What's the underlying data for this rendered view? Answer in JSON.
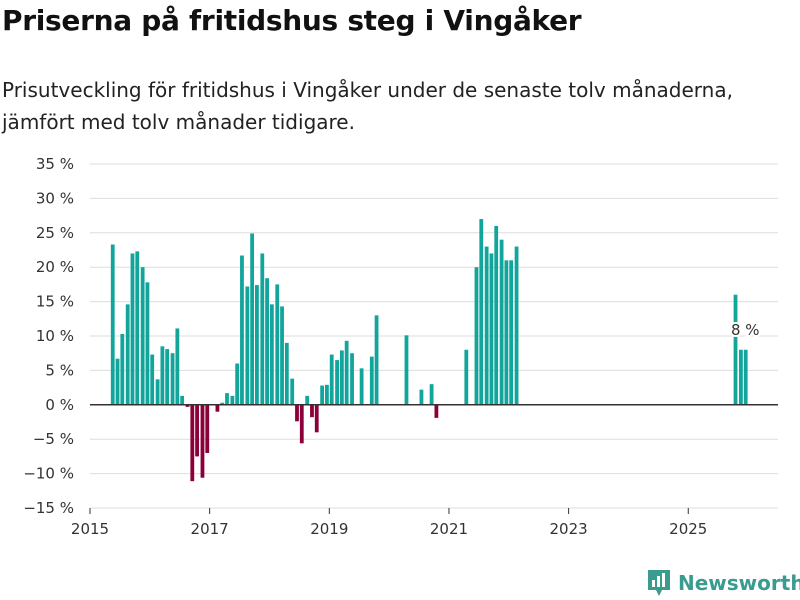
{
  "title": "Priserna på fritidshus steg i Vingåker",
  "subtitle": "Prisutveckling för fritidshus i Vingåker under de senaste tolv månaderna, jämfört med tolv månader tidigare.",
  "brand": "Newsworthy",
  "colors": {
    "positive": "#11a59b",
    "negative": "#8b0038",
    "grid": "#dddddd",
    "zero": "#333333"
  },
  "chart_data": {
    "type": "bar",
    "ylim": [
      -15,
      35
    ],
    "yticks": [
      -15,
      -10,
      -5,
      0,
      5,
      10,
      15,
      20,
      25,
      30,
      35
    ],
    "ytick_labels": [
      "−15 %",
      "−10 %",
      "−5 %",
      "0 %",
      "5 %",
      "10 %",
      "15 %",
      "20 %",
      "25 %",
      "30 %",
      "35 %"
    ],
    "xlim": [
      2015.0,
      2026.5
    ],
    "xticks": [
      2015,
      2017,
      2019,
      2021,
      2023,
      2025
    ],
    "xtick_labels": [
      "2015",
      "2017",
      "2019",
      "2021",
      "2023",
      "2025"
    ],
    "annotation": {
      "text": "8 %",
      "x": 2025.92,
      "value": 8
    },
    "points": [
      {
        "x": 2015.38,
        "y": 23.3
      },
      {
        "x": 2015.46,
        "y": 6.7
      },
      {
        "x": 2015.54,
        "y": 10.3
      },
      {
        "x": 2015.63,
        "y": 14.6
      },
      {
        "x": 2015.71,
        "y": 22.0
      },
      {
        "x": 2015.79,
        "y": 22.3
      },
      {
        "x": 2015.88,
        "y": 20.0
      },
      {
        "x": 2015.96,
        "y": 17.8
      },
      {
        "x": 2016.04,
        "y": 7.3
      },
      {
        "x": 2016.13,
        "y": 3.7
      },
      {
        "x": 2016.21,
        "y": 8.5
      },
      {
        "x": 2016.29,
        "y": 8.1
      },
      {
        "x": 2016.38,
        "y": 7.5
      },
      {
        "x": 2016.46,
        "y": 11.1
      },
      {
        "x": 2016.54,
        "y": 1.3
      },
      {
        "x": 2016.63,
        "y": -0.3
      },
      {
        "x": 2016.71,
        "y": -11.1
      },
      {
        "x": 2016.79,
        "y": -7.5
      },
      {
        "x": 2016.88,
        "y": -10.6
      },
      {
        "x": 2016.96,
        "y": -7.0
      },
      {
        "x": 2017.13,
        "y": -1.0
      },
      {
        "x": 2017.21,
        "y": 0.3
      },
      {
        "x": 2017.29,
        "y": 1.7
      },
      {
        "x": 2017.38,
        "y": 1.3
      },
      {
        "x": 2017.46,
        "y": 6.0
      },
      {
        "x": 2017.54,
        "y": 21.7
      },
      {
        "x": 2017.63,
        "y": 17.2
      },
      {
        "x": 2017.71,
        "y": 24.9
      },
      {
        "x": 2017.79,
        "y": 17.4
      },
      {
        "x": 2017.88,
        "y": 22.0
      },
      {
        "x": 2017.96,
        "y": 18.4
      },
      {
        "x": 2018.04,
        "y": 14.6
      },
      {
        "x": 2018.13,
        "y": 17.5
      },
      {
        "x": 2018.21,
        "y": 14.3
      },
      {
        "x": 2018.29,
        "y": 9.0
      },
      {
        "x": 2018.38,
        "y": 3.8
      },
      {
        "x": 2018.46,
        "y": -2.4
      },
      {
        "x": 2018.54,
        "y": -5.6
      },
      {
        "x": 2018.63,
        "y": 1.3
      },
      {
        "x": 2018.71,
        "y": -1.8
      },
      {
        "x": 2018.79,
        "y": -4.0
      },
      {
        "x": 2018.88,
        "y": 2.8
      },
      {
        "x": 2018.96,
        "y": 2.9
      },
      {
        "x": 2019.04,
        "y": 7.3
      },
      {
        "x": 2019.13,
        "y": 6.5
      },
      {
        "x": 2019.21,
        "y": 7.9
      },
      {
        "x": 2019.29,
        "y": 9.3
      },
      {
        "x": 2019.38,
        "y": 7.5
      },
      {
        "x": 2019.54,
        "y": 5.3
      },
      {
        "x": 2019.71,
        "y": 7.0
      },
      {
        "x": 2019.79,
        "y": 13.0
      },
      {
        "x": 2020.29,
        "y": 10.1
      },
      {
        "x": 2020.54,
        "y": 2.2
      },
      {
        "x": 2020.71,
        "y": 3.0
      },
      {
        "x": 2020.79,
        "y": -1.9
      },
      {
        "x": 2021.29,
        "y": 8.0
      },
      {
        "x": 2021.46,
        "y": 20.0
      },
      {
        "x": 2021.54,
        "y": 27.0
      },
      {
        "x": 2021.63,
        "y": 23.0
      },
      {
        "x": 2021.71,
        "y": 22.0
      },
      {
        "x": 2021.79,
        "y": 26.0
      },
      {
        "x": 2021.88,
        "y": 24.0
      },
      {
        "x": 2021.96,
        "y": 21.0
      },
      {
        "x": 2022.04,
        "y": 21.0
      },
      {
        "x": 2022.13,
        "y": 23.0
      },
      {
        "x": 2025.79,
        "y": 16.0
      },
      {
        "x": 2025.88,
        "y": 8.0
      },
      {
        "x": 2025.96,
        "y": 8.0
      }
    ]
  }
}
